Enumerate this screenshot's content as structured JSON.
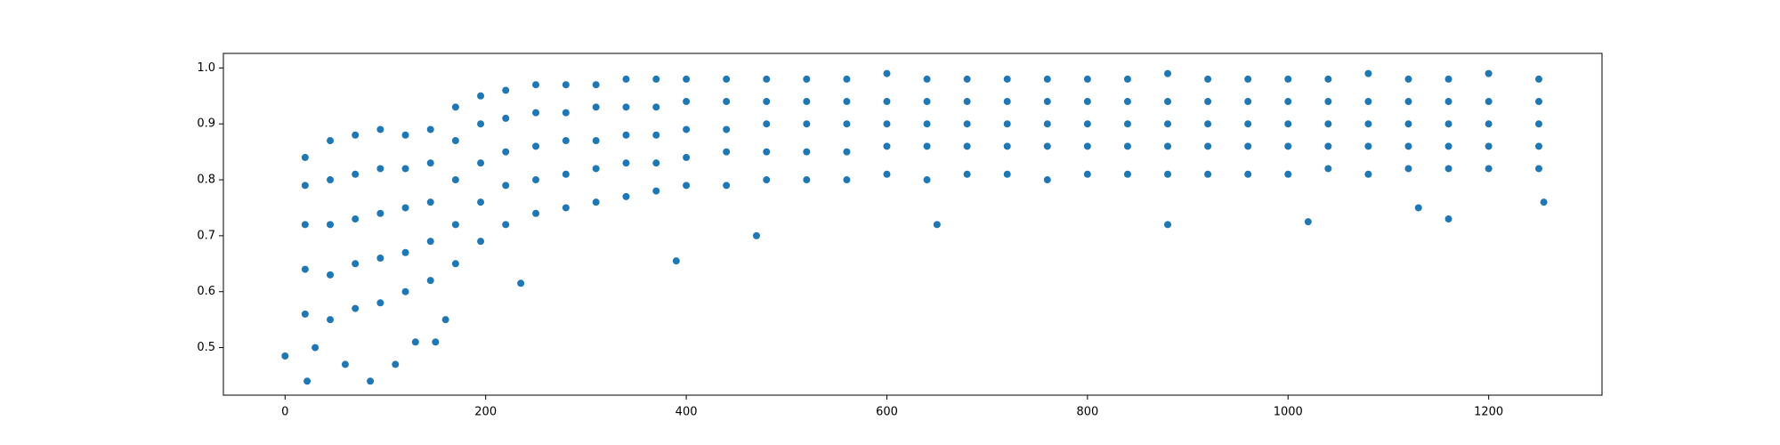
{
  "chart_data": {
    "type": "scatter",
    "color": "#1f77b4",
    "xlim": [
      -61.5,
      1313
    ],
    "ylim": [
      0.415,
      1.026
    ],
    "xticks": [
      0,
      200,
      400,
      600,
      800,
      1000,
      1200
    ],
    "yticks": [
      0.5,
      0.6,
      0.7,
      0.8,
      0.9,
      {
        "value": 1,
        "label": "1.0"
      }
    ],
    "x": [
      20,
      20,
      20,
      20,
      20,
      45,
      45,
      45,
      45,
      45,
      70,
      70,
      70,
      70,
      70,
      95,
      95,
      95,
      95,
      95,
      120,
      120,
      120,
      120,
      120,
      145,
      145,
      145,
      145,
      145,
      170,
      170,
      170,
      170,
      170,
      195,
      195,
      195,
      195,
      195,
      220,
      220,
      220,
      220,
      220,
      250,
      250,
      250,
      250,
      250,
      280,
      280,
      280,
      280,
      280,
      310,
      310,
      310,
      310,
      310,
      340,
      340,
      340,
      340,
      340,
      370,
      370,
      370,
      370,
      370,
      400,
      400,
      400,
      400,
      400,
      440,
      440,
      440,
      440,
      440,
      480,
      480,
      480,
      480,
      480,
      520,
      520,
      520,
      520,
      520,
      560,
      560,
      560,
      560,
      560,
      600,
      600,
      600,
      600,
      600,
      640,
      640,
      640,
      640,
      640,
      680,
      680,
      680,
      680,
      680,
      720,
      720,
      720,
      720,
      720,
      760,
      760,
      760,
      760,
      760,
      800,
      800,
      800,
      800,
      800,
      840,
      840,
      840,
      840,
      840,
      880,
      880,
      880,
      880,
      880,
      920,
      920,
      920,
      920,
      920,
      960,
      960,
      960,
      960,
      960,
      1000,
      1000,
      1000,
      1000,
      1000,
      1040,
      1040,
      1040,
      1040,
      1040,
      1080,
      1080,
      1080,
      1080,
      1080,
      1120,
      1120,
      1120,
      1120,
      1120,
      1160,
      1160,
      1160,
      1160,
      1160,
      1200,
      1200,
      1200,
      1200,
      1200,
      1250,
      1250,
      1250,
      1250,
      1250,
      0,
      22,
      85,
      60,
      110,
      150,
      390,
      235,
      470,
      1160,
      1020,
      880,
      1255,
      30,
      130,
      160,
      650,
      1130
    ],
    "y": [
      0.56,
      0.64,
      0.72,
      0.79,
      0.84,
      0.55,
      0.63,
      0.72,
      0.8,
      0.87,
      0.57,
      0.65,
      0.73,
      0.81,
      0.88,
      0.58,
      0.66,
      0.74,
      0.82,
      0.89,
      0.6,
      0.67,
      0.75,
      0.82,
      0.88,
      0.62,
      0.69,
      0.76,
      0.83,
      0.89,
      0.65,
      0.72,
      0.8,
      0.87,
      0.93,
      0.69,
      0.76,
      0.83,
      0.9,
      0.95,
      0.72,
      0.79,
      0.85,
      0.91,
      0.96,
      0.74,
      0.8,
      0.86,
      0.92,
      0.97,
      0.75,
      0.81,
      0.87,
      0.92,
      0.97,
      0.76,
      0.82,
      0.87,
      0.93,
      0.97,
      0.77,
      0.83,
      0.88,
      0.93,
      0.98,
      0.78,
      0.83,
      0.88,
      0.93,
      0.98,
      0.79,
      0.84,
      0.89,
      0.94,
      0.98,
      0.79,
      0.85,
      0.89,
      0.94,
      0.98,
      0.8,
      0.85,
      0.9,
      0.94,
      0.98,
      0.8,
      0.85,
      0.9,
      0.94,
      0.98,
      0.8,
      0.85,
      0.9,
      0.94,
      0.98,
      0.81,
      0.86,
      0.9,
      0.94,
      0.99,
      0.8,
      0.86,
      0.9,
      0.94,
      0.98,
      0.81,
      0.86,
      0.9,
      0.94,
      0.98,
      0.81,
      0.86,
      0.9,
      0.94,
      0.98,
      0.8,
      0.86,
      0.9,
      0.94,
      0.98,
      0.81,
      0.86,
      0.9,
      0.94,
      0.98,
      0.81,
      0.86,
      0.9,
      0.94,
      0.98,
      0.81,
      0.86,
      0.9,
      0.94,
      0.99,
      0.81,
      0.86,
      0.9,
      0.94,
      0.98,
      0.81,
      0.86,
      0.9,
      0.94,
      0.98,
      0.81,
      0.86,
      0.9,
      0.94,
      0.98,
      0.82,
      0.86,
      0.9,
      0.94,
      0.98,
      0.81,
      0.86,
      0.9,
      0.94,
      0.99,
      0.82,
      0.86,
      0.9,
      0.94,
      0.98,
      0.82,
      0.86,
      0.9,
      0.94,
      0.98,
      0.82,
      0.86,
      0.9,
      0.94,
      0.99,
      0.82,
      0.86,
      0.9,
      0.94,
      0.98,
      0.485,
      0.44,
      0.44,
      0.47,
      0.47,
      0.51,
      0.655,
      0.615,
      0.7,
      0.73,
      0.725,
      0.72,
      0.76,
      0.5,
      0.51,
      0.55,
      0.72,
      0.75
    ]
  }
}
